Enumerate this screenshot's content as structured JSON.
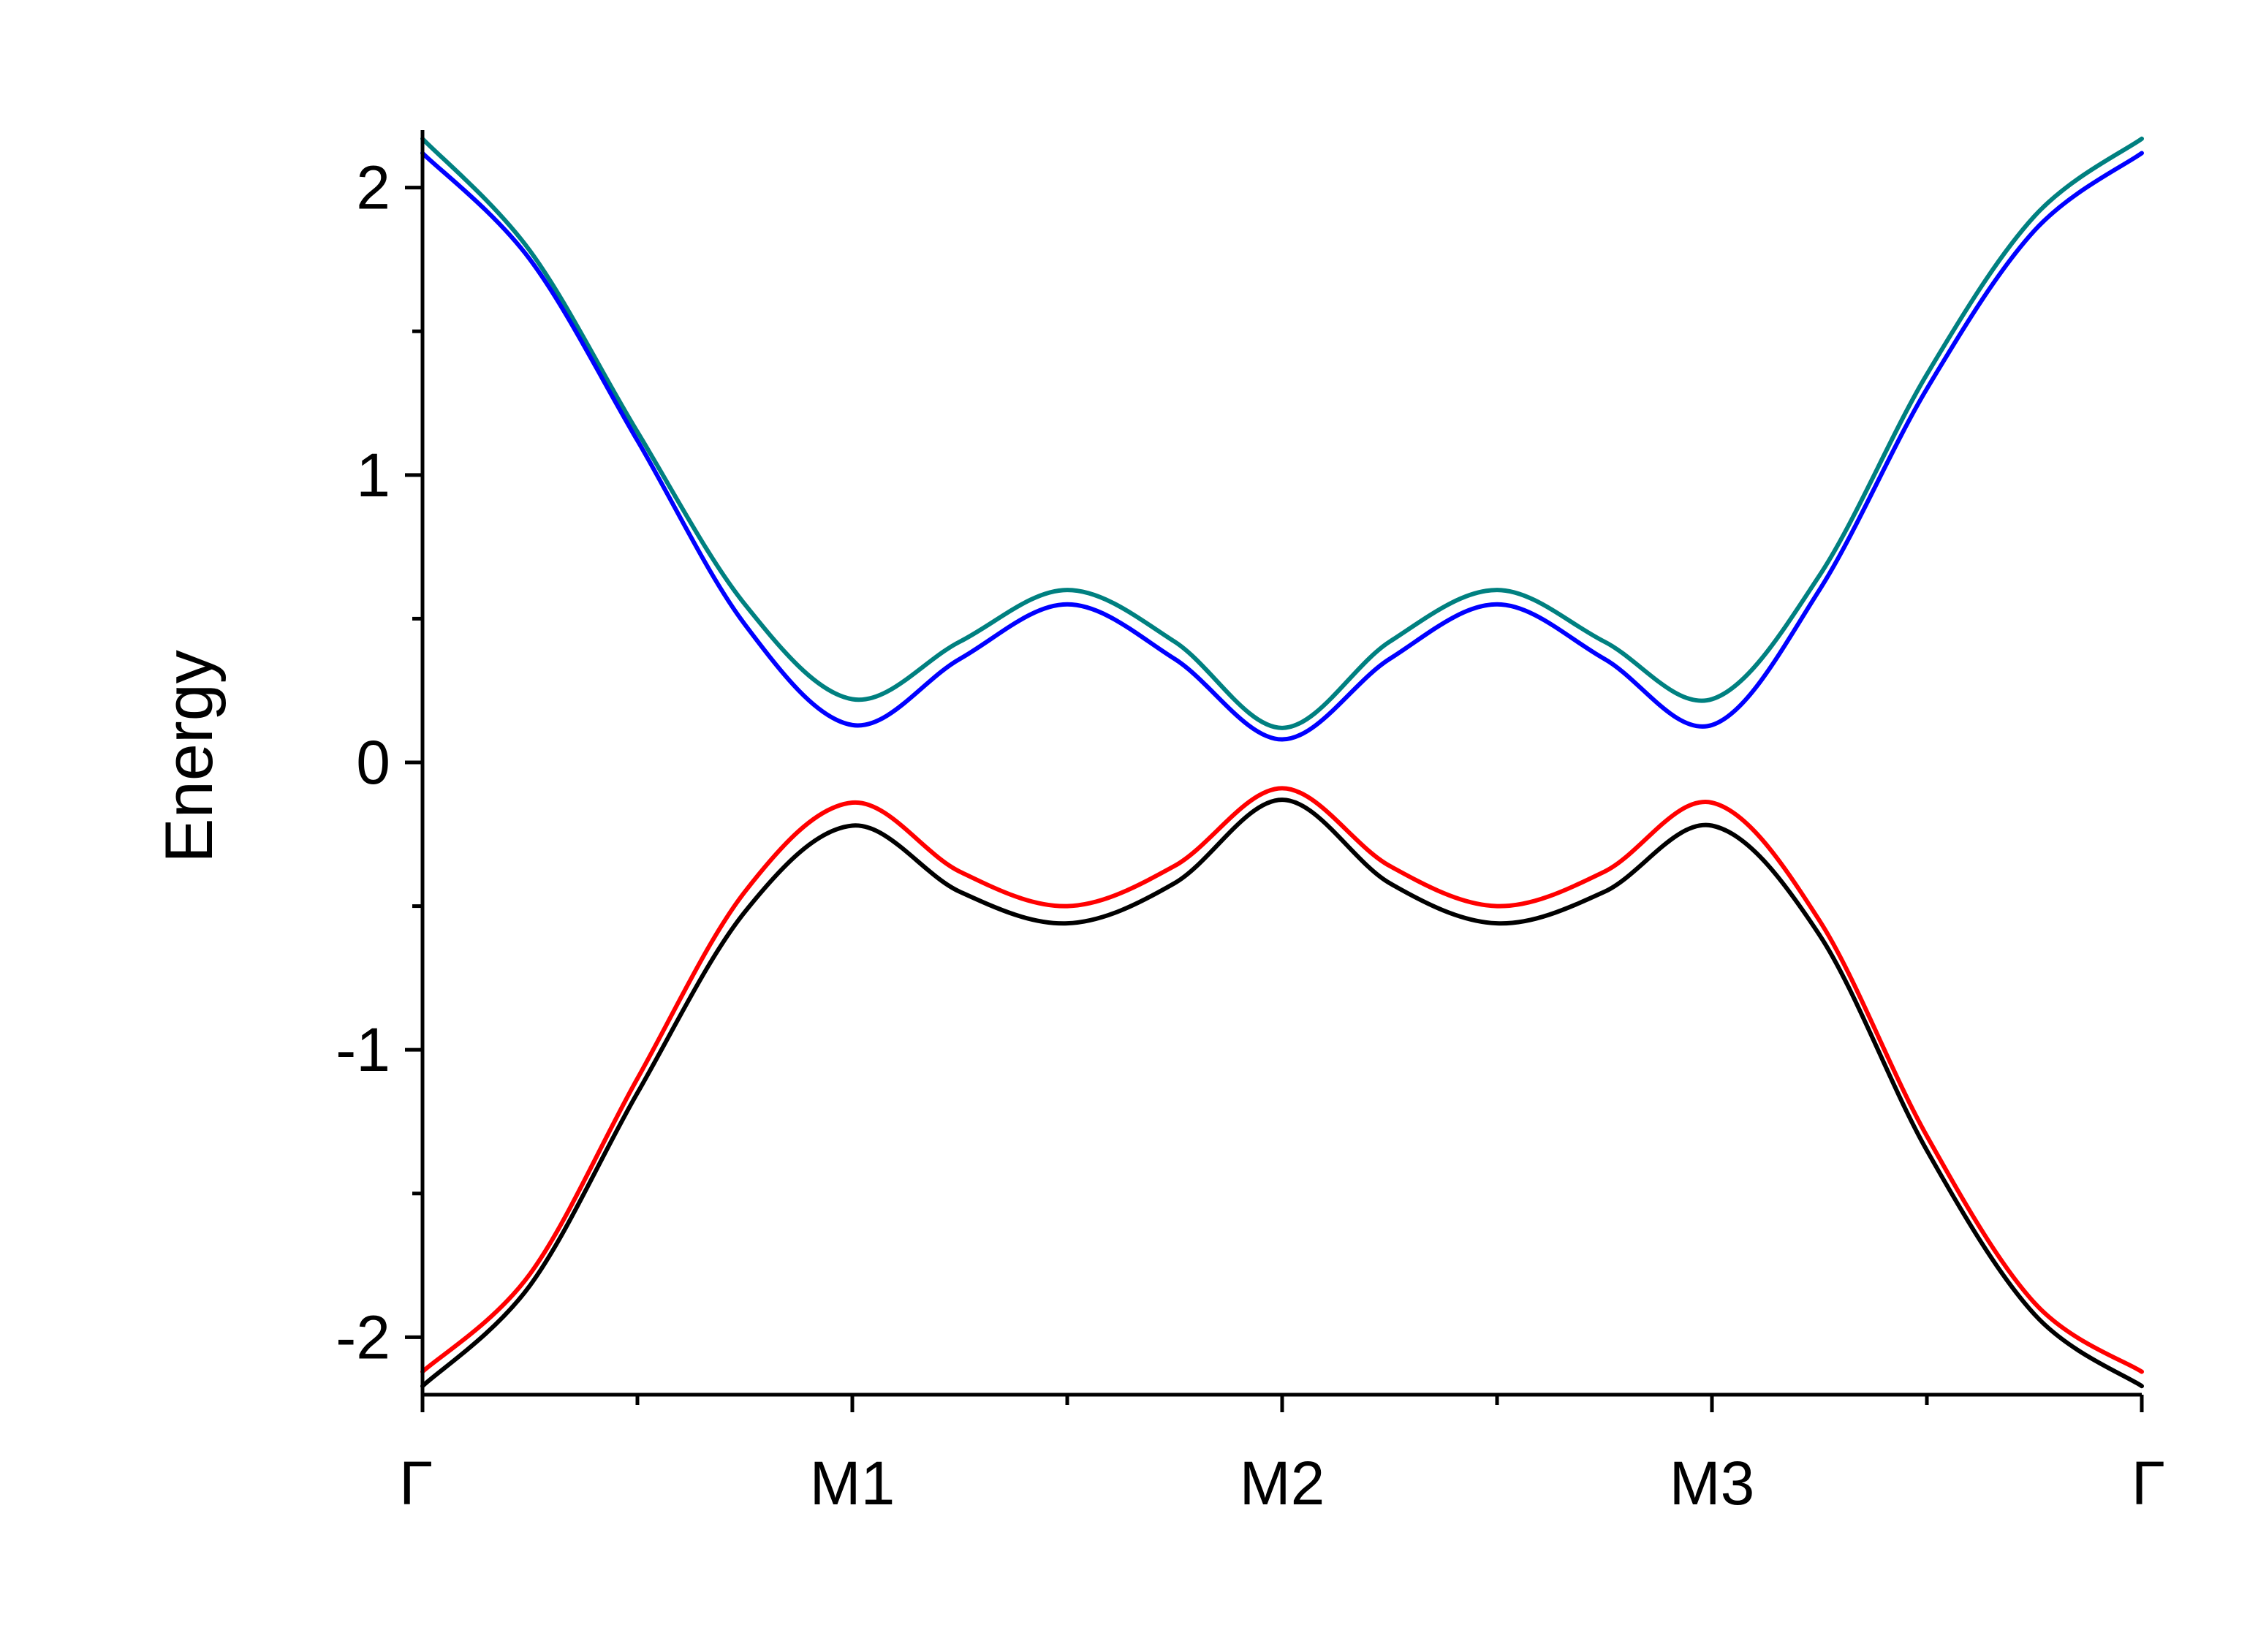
{
  "chart_data": {
    "type": "line",
    "title": "",
    "xlabel": "",
    "ylabel": "Energy",
    "xlim": [
      0,
      4
    ],
    "ylim": [
      -2.2,
      2.2
    ],
    "grid": false,
    "legend": "none",
    "x_ticks": [
      {
        "x": 0,
        "label": "Γ"
      },
      {
        "x": 1,
        "label": "M1"
      },
      {
        "x": 2,
        "label": "M2"
      },
      {
        "x": 3,
        "label": "M3"
      },
      {
        "x": 4,
        "label": "Γ"
      }
    ],
    "x_minor_ticks": [
      0.5,
      1.5,
      2.5,
      3.5
    ],
    "y_ticks": [
      {
        "y": 2,
        "label": "2"
      },
      {
        "y": 1,
        "label": "1"
      },
      {
        "y": 0,
        "label": "0"
      },
      {
        "y": -1,
        "label": "-1"
      },
      {
        "y": -2,
        "label": "-2"
      }
    ],
    "y_minor_ticks": [
      1.5,
      0.5,
      -0.5,
      -1.5
    ],
    "x": [
      0,
      0.25,
      0.5,
      0.75,
      1.0,
      1.25,
      1.5,
      1.75,
      2.0,
      2.25,
      2.5,
      2.75,
      3.0,
      3.25,
      3.5,
      3.75,
      4.0
    ],
    "series": [
      {
        "color": "#008080",
        "values": [
          2.17,
          1.78,
          1.15,
          0.55,
          0.22,
          0.42,
          0.6,
          0.42,
          0.12,
          0.42,
          0.6,
          0.42,
          0.22,
          0.65,
          1.35,
          1.9,
          2.17
        ]
      },
      {
        "color": "#0000ff",
        "values": [
          2.12,
          1.75,
          1.12,
          0.48,
          0.13,
          0.36,
          0.55,
          0.36,
          0.08,
          0.36,
          0.55,
          0.36,
          0.13,
          0.6,
          1.3,
          1.85,
          2.12
        ]
      },
      {
        "color": "#ff0000",
        "values": [
          -2.12,
          -1.78,
          -1.1,
          -0.45,
          -0.14,
          -0.38,
          -0.5,
          -0.36,
          -0.09,
          -0.36,
          -0.5,
          -0.38,
          -0.14,
          -0.55,
          -1.3,
          -1.88,
          -2.12
        ]
      },
      {
        "color": "#000000",
        "values": [
          -2.17,
          -1.82,
          -1.15,
          -0.52,
          -0.22,
          -0.45,
          -0.56,
          -0.42,
          -0.13,
          -0.42,
          -0.56,
          -0.45,
          -0.22,
          -0.6,
          -1.35,
          -1.92,
          -2.17
        ]
      }
    ]
  }
}
